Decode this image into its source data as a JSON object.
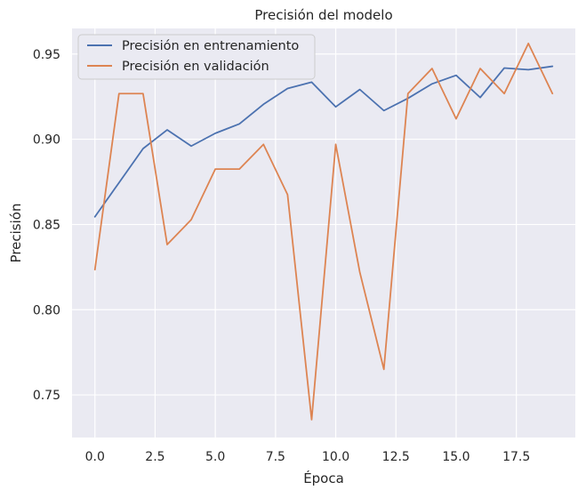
{
  "chart_data": {
    "type": "line",
    "title": "Precisión del modelo",
    "xlabel": "Época",
    "ylabel": "Precisión",
    "xlim": [
      -0.95,
      19.95
    ],
    "ylim": [
      0.725,
      0.965
    ],
    "xticks": [
      0.0,
      2.5,
      5.0,
      7.5,
      10.0,
      12.5,
      15.0,
      17.5
    ],
    "xtick_labels": [
      "0.0",
      "2.5",
      "5.0",
      "7.5",
      "10.0",
      "12.5",
      "15.0",
      "17.5"
    ],
    "yticks": [
      0.75,
      0.8,
      0.85,
      0.9,
      0.95
    ],
    "ytick_labels": [
      "0.75",
      "0.80",
      "0.85",
      "0.90",
      "0.95"
    ],
    "grid": true,
    "legend_position": "upper-left",
    "x": [
      0,
      1,
      2,
      3,
      4,
      5,
      6,
      7,
      8,
      9,
      10,
      11,
      12,
      13,
      14,
      15,
      16,
      17,
      18,
      19
    ],
    "series": [
      {
        "name": "Precisión en entrenamiento",
        "color": "#4c72b0",
        "values": [
          0.8545,
          0.8745,
          0.8945,
          0.9055,
          0.896,
          0.9035,
          0.909,
          0.9205,
          0.9298,
          0.9335,
          0.919,
          0.9292,
          0.9168,
          0.924,
          0.9325,
          0.9375,
          0.9245,
          0.9418,
          0.9408,
          0.9428
        ]
      },
      {
        "name": "Precisión en validación",
        "color": "#dd8452",
        "values": [
          0.8235,
          0.9268,
          0.9268,
          0.8382,
          0.8528,
          0.8825,
          0.8825,
          0.897,
          0.8675,
          0.7355,
          0.897,
          0.822,
          0.765,
          0.9268,
          0.9415,
          0.912,
          0.9415,
          0.9268,
          0.9562,
          0.9268
        ]
      }
    ]
  },
  "colors": {
    "plot_background": "#eaeaf2",
    "grid": "#ffffff"
  }
}
